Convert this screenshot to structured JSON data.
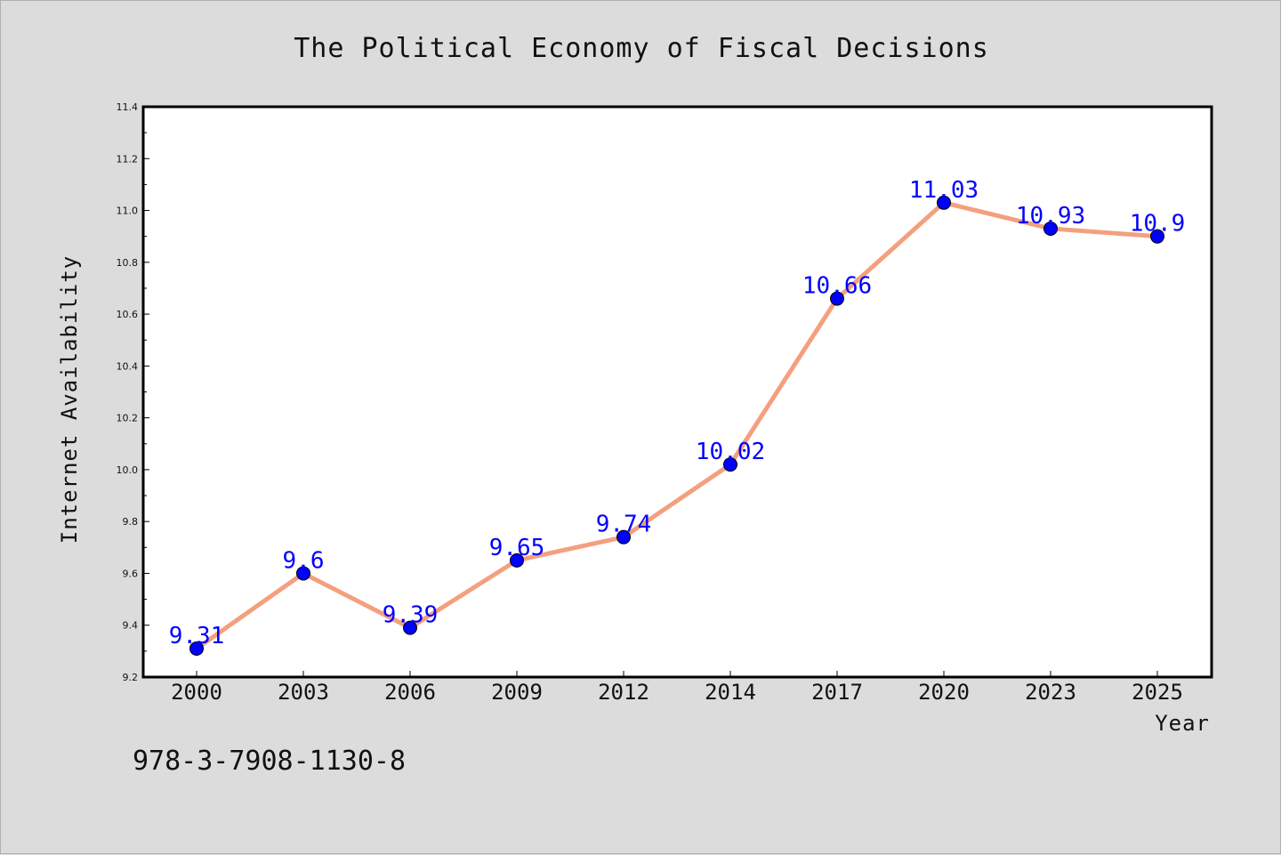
{
  "chart_data": {
    "type": "line",
    "title": "The Political Economy of Fiscal Decisions",
    "xlabel": "Year",
    "ylabel": "Internet Availability",
    "categories": [
      "2000",
      "2003",
      "2006",
      "2009",
      "2012",
      "2014",
      "2017",
      "2020",
      "2023",
      "2025"
    ],
    "series": [
      {
        "values": [
          9.31,
          9.6,
          9.39,
          9.65,
          9.74,
          10.02,
          10.66,
          11.03,
          10.93,
          10.9
        ],
        "data_labels": [
          "9.31",
          "9.6",
          "9.39",
          "9.65",
          "9.74",
          "10.02",
          "10.66",
          "11.03",
          "10.93",
          "10.9"
        ],
        "line_color": "#f4a07e",
        "marker_color": "#0000ff"
      }
    ],
    "ylim": [
      9.2,
      11.4
    ],
    "yticks": [
      "9.2",
      "9.4",
      "9.6",
      "9.8",
      "10.0",
      "10.2",
      "10.4",
      "10.6",
      "10.8",
      "11.0",
      "11.2",
      "11.4"
    ],
    "grid": false,
    "legend": "none"
  },
  "footer": {
    "isbn": "978-3-7908-1130-8"
  },
  "colors": {
    "background": "#dcdcdc",
    "plot_area": "#ffffff",
    "label_text": "#0000ff"
  }
}
